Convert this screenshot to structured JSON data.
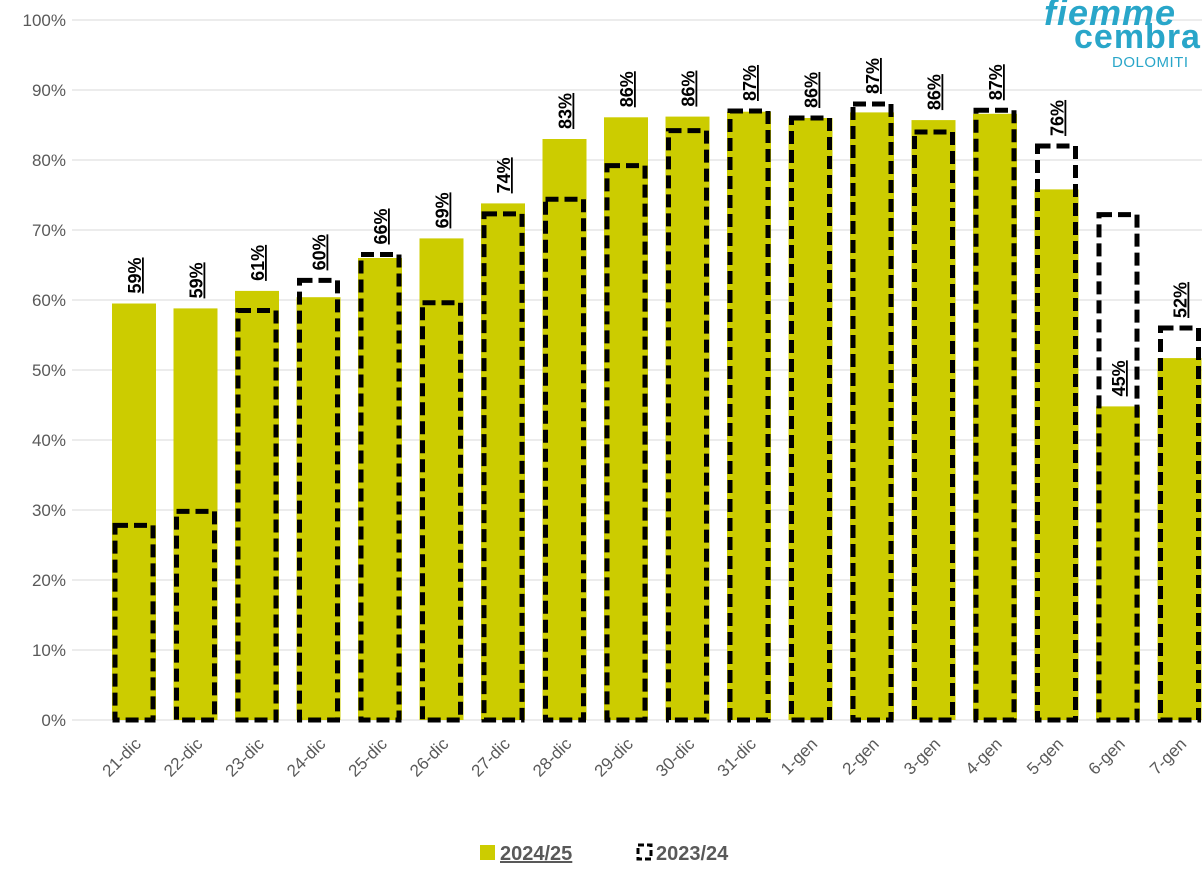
{
  "chart_data": {
    "type": "bar",
    "categories": [
      "21-dic",
      "22-dic",
      "23-dic",
      "24-dic",
      "25-dic",
      "26-dic",
      "27-dic",
      "28-dic",
      "29-dic",
      "30-dic",
      "31-dic",
      "1-gen",
      "2-gen",
      "3-gen",
      "4-gen",
      "5-gen",
      "6-gen",
      "7-gen"
    ],
    "series": [
      {
        "name": "2024/25",
        "style": "filled",
        "color": "#cccc00",
        "values": [
          59.5,
          58.8,
          61.3,
          60.4,
          66.0,
          68.8,
          73.8,
          83.0,
          86.1,
          86.2,
          86.9,
          86.0,
          86.8,
          85.7,
          86.6,
          75.8,
          44.8,
          51.7
        ],
        "labels": [
          "59%",
          "59%",
          "61%",
          "60%",
          "66%",
          "69%",
          "74%",
          "83%",
          "86%",
          "86%",
          "87%",
          "86%",
          "87%",
          "86%",
          "87%",
          "76%",
          "45%",
          "52%"
        ]
      },
      {
        "name": "2023/24",
        "style": "dashed-outline",
        "color": "#000000",
        "values": [
          27.8,
          29.8,
          58.5,
          62.8,
          66.5,
          59.6,
          72.3,
          74.4,
          79.2,
          84.2,
          87.0,
          86.0,
          88.0,
          84.0,
          87.1,
          82.0,
          72.2,
          56.0
        ]
      }
    ],
    "yticks": [
      "0%",
      "10%",
      "20%",
      "30%",
      "40%",
      "50%",
      "60%",
      "70%",
      "80%",
      "90%",
      "100%"
    ],
    "ylim": [
      0,
      100
    ],
    "grid": true,
    "legend_position": "bottom"
  },
  "legend": [
    {
      "label": "2024/25",
      "icon": "filled-square-icon"
    },
    {
      "label": "2023/24",
      "icon": "dashed-square-icon"
    }
  ],
  "logo": {
    "line1": "fiemme",
    "line2": "cembra",
    "line3": "DOLOMITI"
  },
  "colors": {
    "bar_fill": "#cccc00",
    "dashed_outline": "#000000",
    "grid": "#d9d9d9",
    "axis_text": "#595959",
    "logo": "#29a6c9"
  }
}
